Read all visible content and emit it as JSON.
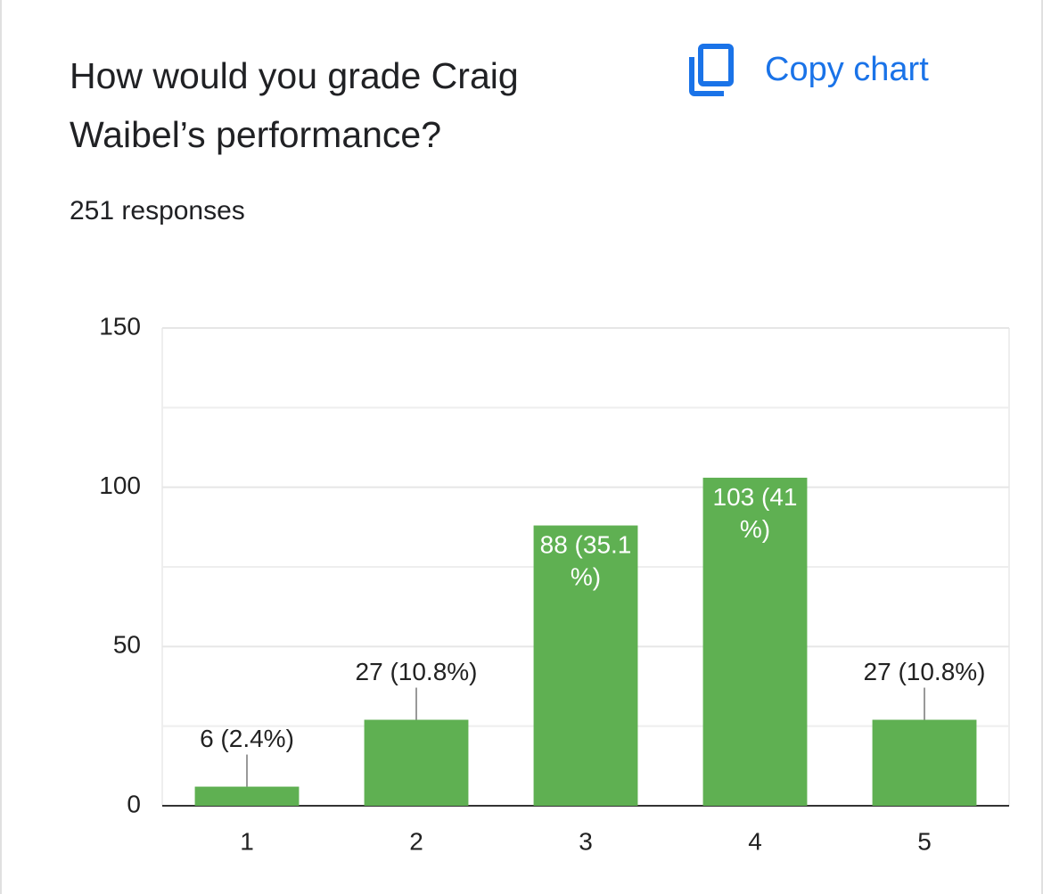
{
  "header": {
    "title": "How would you grade Craig Waibel’s performance?",
    "subtitle": "251 responses",
    "button": "Copy chart"
  },
  "chart_data": {
    "type": "bar",
    "categories": [
      "1",
      "2",
      "3",
      "4",
      "5"
    ],
    "values": [
      6,
      27,
      88,
      103,
      27
    ],
    "value_labels": [
      "6 (2.4%)",
      "27 (10.8%)",
      "88 (35.1%)",
      "103 (41%)",
      "27 (10.8%)"
    ],
    "color": "#5fb052",
    "ylim": [
      0,
      150
    ],
    "yticks": [
      0,
      50,
      100,
      150
    ],
    "minor_yticks": [
      25,
      75,
      125
    ],
    "grid": true
  }
}
